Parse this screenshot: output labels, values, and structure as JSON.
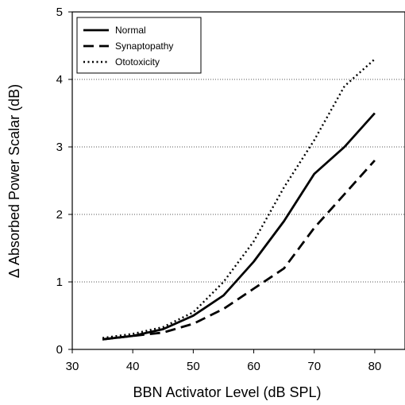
{
  "chart_data": {
    "type": "line",
    "xlabel": "BBN Activator Level (dB SPL)",
    "ylabel": "Δ Absorbed Power Scalar (dB)",
    "xlim": [
      30,
      85
    ],
    "ylim": [
      0,
      5
    ],
    "xticks": [
      "30",
      "40",
      "50",
      "60",
      "70",
      "80"
    ],
    "yticks": [
      "0",
      "1",
      "2",
      "3",
      "4",
      "5"
    ],
    "grid": "horizontal dotted",
    "legend_position": "top-left",
    "series": [
      {
        "name": "Normal",
        "style": "solid",
        "x": [
          35,
          40,
          45,
          50,
          55,
          60,
          65,
          70,
          75,
          80
        ],
        "y": [
          0.15,
          0.2,
          0.3,
          0.5,
          0.8,
          1.3,
          1.9,
          2.6,
          3.0,
          3.5
        ]
      },
      {
        "name": "Synaptopathy",
        "style": "dashed",
        "x": [
          35,
          40,
          45,
          50,
          55,
          60,
          65,
          70,
          75,
          80
        ],
        "y": [
          0.15,
          0.2,
          0.25,
          0.38,
          0.6,
          0.9,
          1.2,
          1.8,
          2.3,
          2.8
        ]
      },
      {
        "name": "Ototoxicity",
        "style": "dotted",
        "x": [
          35,
          40,
          45,
          50,
          55,
          60,
          65,
          70,
          75,
          80
        ],
        "y": [
          0.17,
          0.23,
          0.33,
          0.55,
          1.0,
          1.6,
          2.4,
          3.1,
          3.9,
          4.3
        ]
      }
    ]
  }
}
